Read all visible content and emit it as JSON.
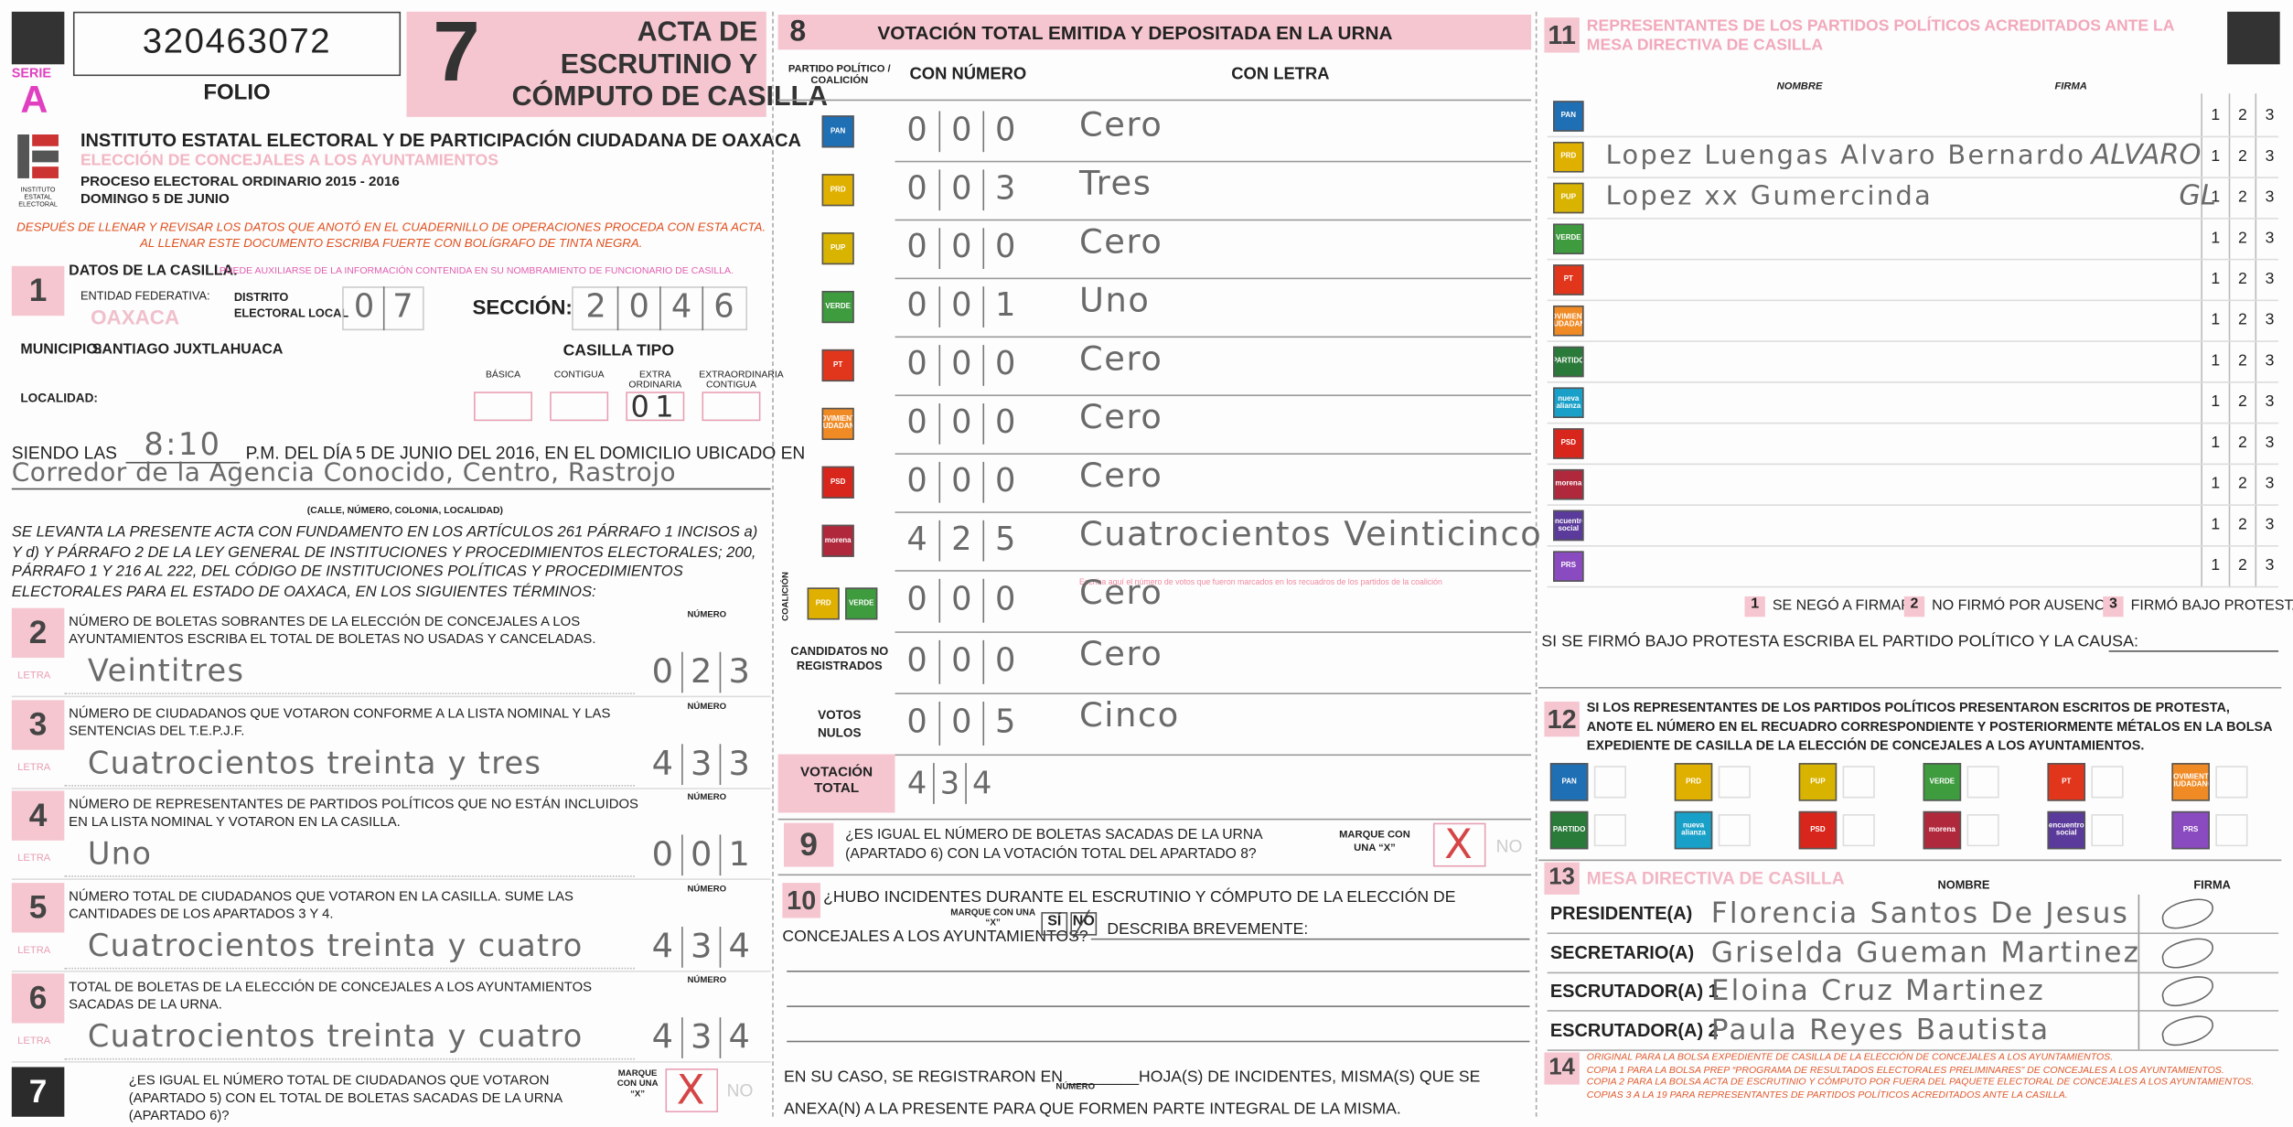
{
  "header": {
    "serie_label": "SERIE",
    "serie": "A",
    "folio_number": "320463072",
    "folio_label": "FOLIO",
    "form_number": "7",
    "title_lines": [
      "ACTA DE",
      "ESCRUTINIO Y",
      "CÓMPUTO DE CASILLA"
    ],
    "logo_caption": "INSTITUTO ESTATAL ELECTORAL",
    "institute": "INSTITUTO ESTATAL ELECTORAL Y DE PARTICIPACIÓN CIUDADANA DE OAXACA",
    "election": "ELECCIÓN DE CONCEJALES A LOS AYUNTAMIENTOS",
    "process": "PROCESO ELECTORAL ORDINARIO 2015 - 2016",
    "date": "DOMINGO 5 DE JUNIO",
    "instructions": [
      "DESPUÉS DE LLENAR Y REVISAR LOS DATOS QUE ANOTÓ EN EL CUADERNILLO DE OPERACIONES PROCEDA CON ESTA ACTA.",
      "AL LLENAR ESTE DOCUMENTO ESCRIBA FUERTE CON BOLÍGRAFO DE TINTA NEGRA."
    ]
  },
  "section1": {
    "number": "1",
    "title": "DATOS DE LA CASILLA.",
    "hint": "PUEDE AUXILIARSE DE LA INFORMACIÓN CONTENIDA EN SU NOMBRAMIENTO DE FUNCIONARIO DE CASILLA.",
    "entity_label": "ENTIDAD FEDERATIVA:",
    "entity": "OAXACA",
    "district_label": [
      "DISTRITO",
      "ELECTORAL LOCAL"
    ],
    "district_digits": [
      "0",
      "7"
    ],
    "section_label": "SECCIÓN:",
    "section_digits": [
      "2",
      "0",
      "4",
      "6"
    ],
    "municipality_label": "MUNICIPIO:",
    "municipality": "SANTIAGO JUXTLAHUACA",
    "locality_label": "LOCALIDAD:",
    "type_label": "CASILLA TIPO",
    "types": [
      {
        "label": "BÁSICA"
      },
      {
        "label": "CONTIGUA"
      },
      {
        "label": "EXTRA ORDINARIA",
        "value": "01"
      },
      {
        "label": "EXTRAORDINARIA CONTIGUA"
      }
    ]
  },
  "opening": {
    "prefix": "SIENDO LAS",
    "time": "8:10",
    "text": "P.M. DEL DÍA 5 DE JUNIO DEL 2016, EN EL DOMICILIO UBICADO EN",
    "address": "Corredor de la Agencia Conocido, Centro, Rastrojo",
    "address_hint": "(CALLE, NÚMERO, COLONIA, LOCALIDAD)",
    "legal": "SE LEVANTA LA PRESENTE ACTA CON FUNDAMENTO EN LOS ARTÍCULOS 261 PÁRRAFO 1 INCISOS a) Y d) Y PÁRRAFO 2 DE LA LEY GENERAL DE INSTITUCIONES Y PROCEDIMIENTOS ELECTORALES; 200, PÁRRAFO 1 Y 216 AL 222, DEL CÓDIGO DE INSTITUCIONES POLÍTICAS Y PROCEDIMIENTOS ELECTORALES PARA EL ESTADO DE OAXACA, EN LOS SIGUIENTES TÉRMINOS:"
  },
  "counts": {
    "number_label": "NÚMERO",
    "letter_label": "LETRA",
    "items": [
      {
        "number": "2",
        "question": "NÚMERO DE BOLETAS SOBRANTES DE LA ELECCIÓN DE CONCEJALES A LOS AYUNTAMIENTOS ESCRIBA EL TOTAL DE BOLETAS NO USADAS Y CANCELADAS.",
        "letter": "Veintitres",
        "digits": [
          "0",
          "2",
          "3"
        ]
      },
      {
        "number": "3",
        "question": "NÚMERO DE CIUDADANOS QUE VOTARON CONFORME A LA LISTA NOMINAL Y LAS SENTENCIAS DEL T.E.P.J.F.",
        "letter": "Cuatrocientos treinta y tres",
        "digits": [
          "4",
          "3",
          "3"
        ]
      },
      {
        "number": "4",
        "question": "NÚMERO DE REPRESENTANTES DE PARTIDOS POLÍTICOS QUE NO ESTÁN INCLUIDOS EN LA LISTA NOMINAL Y VOTARON EN LA CASILLA.",
        "letter": "Uno",
        "digits": [
          "0",
          "0",
          "1"
        ]
      },
      {
        "number": "5",
        "question": "NÚMERO TOTAL DE CIUDADANOS QUE VOTARON EN LA CASILLA. SUME LAS CANTIDADES DE LOS APARTADOS 3 Y 4.",
        "letter": "Cuatrocientos treinta y cuatro",
        "digits": [
          "4",
          "3",
          "4"
        ]
      },
      {
        "number": "6",
        "question": "TOTAL DE BOLETAS DE LA ELECCIÓN DE CONCEJALES A LOS AYUNTAMIENTOS SACADAS DE LA URNA.",
        "letter": "Cuatrocientos treinta y cuatro",
        "digits": [
          "4",
          "3",
          "4"
        ]
      }
    ]
  },
  "section7": {
    "number": "7",
    "question": "¿ES IGUAL EL NÚMERO TOTAL DE CIUDADANOS QUE VOTARON (APARTADO 5) CON EL TOTAL DE BOLETAS SACADAS DE LA URNA (APARTADO 6)?",
    "mark_label": "MARQUE CON UNA “X”",
    "mark": "X",
    "no": "NO"
  },
  "section8": {
    "number": "8",
    "title": "VOTACIÓN TOTAL EMITIDA Y DEPOSITADA EN LA URNA",
    "party_col_label": "PARTIDO POLÍTICO / COALICIÓN",
    "number_col_label": "CON NÚMERO",
    "letter_col_label": "CON LETRA",
    "parties": [
      {
        "logo": {
          "label": "PAN",
          "color": "#1f6fb5"
        },
        "digits": [
          "0",
          "0",
          "0"
        ],
        "letter": "Cero"
      },
      {
        "logo": {
          "label": "PRD",
          "color": "#e0b000"
        },
        "digits": [
          "0",
          "0",
          "3"
        ],
        "letter": "Tres"
      },
      {
        "logo": {
          "label": "PUP",
          "color": "#d8b400"
        },
        "digits": [
          "0",
          "0",
          "0"
        ],
        "letter": "Cero"
      },
      {
        "logo": {
          "label": "VERDE",
          "color": "#3e9b3e"
        },
        "digits": [
          "0",
          "0",
          "1"
        ],
        "letter": "Uno"
      },
      {
        "logo": {
          "label": "PT",
          "color": "#e2361c"
        },
        "digits": [
          "0",
          "0",
          "0"
        ],
        "letter": "Cero"
      },
      {
        "logo": {
          "label": "MOVIMIENTO CIUDADANO",
          "color": "#f08a24"
        },
        "digits": [
          "0",
          "0",
          "0"
        ],
        "letter": "Cero"
      },
      {
        "logo": {
          "label": "PSD",
          "color": "#d9261c"
        },
        "digits": [
          "0",
          "0",
          "0"
        ],
        "letter": "Cero"
      },
      {
        "logo": {
          "label": "morena",
          "color": "#b0283c"
        },
        "digits": [
          "4",
          "2",
          "5"
        ],
        "letter": "Cuatrocientos Veinticinco"
      }
    ],
    "note": "Escriba aquí el número de votos que fueron marcados en los recuadros de los partidos de la coalición",
    "coalition": {
      "label": "COALICIÓN",
      "logos": [
        {
          "label": "PRD",
          "color": "#e0b000"
        },
        {
          "label": "VERDE",
          "color": "#3e9b3e"
        }
      ],
      "digits": [
        "0",
        "0",
        "0"
      ],
      "letter": "Cero"
    },
    "unregistered": {
      "label": "CANDIDATOS NO REGISTRADOS",
      "digits": [
        "0",
        "0",
        "0"
      ],
      "letter": "Cero"
    },
    "null_votes": {
      "label": "VOTOS NULOS",
      "digits": [
        "0",
        "0",
        "5"
      ],
      "letter": "Cinco"
    },
    "total": {
      "label": "VOTACIÓN TOTAL",
      "digits": [
        "4",
        "3",
        "4"
      ]
    }
  },
  "section9": {
    "number": "9",
    "question": "¿ES IGUAL EL NÚMERO DE BOLETAS SACADAS DE LA URNA (APARTADO 6) CON LA VOTACIÓN TOTAL DEL APARTADO 8?",
    "mark_label": "MARQUE CON UNA “X”",
    "mark": "X",
    "no": "NO"
  },
  "section10": {
    "number": "10",
    "question": "¿HUBO INCIDENTES DURANTE EL ESCRUTINIO Y CÓMPUTO DE LA ELECCIÓN DE CONCEJALES A LOS AYUNTAMIENTOS?",
    "mark_label": "MARQUE CON UNA “X”",
    "yes": "SÍ",
    "no": "NO",
    "describe": "DESCRIBA BREVEMENTE:",
    "footer": "EN SU CASO, SE REGISTRARON EN ________HOJA(S) DE INCIDENTES, MISMA(S) QUE SE ANEXA(N) A LA PRESENTE PARA QUE FORMEN PARTE INTEGRAL DE LA MISMA.",
    "footer_hint": "NÚMERO"
  },
  "section11": {
    "number": "11",
    "title": "REPRESENTANTES DE LOS PARTIDOS POLÍTICOS ACREDITADOS ANTE LA MESA DIRECTIVA DE CASILLA",
    "name_label": "NOMBRE",
    "signature_label": "FIRMA",
    "options": [
      "1",
      "2",
      "3"
    ],
    "rows": [
      {
        "logo": {
          "label": "PAN",
          "color": "#1f6fb5"
        }
      },
      {
        "logo": {
          "label": "PRD",
          "color": "#e0b000"
        },
        "name": "Lopez Luengas Alvaro Bernardo",
        "signature": "ALVARO"
      },
      {
        "logo": {
          "label": "PUP",
          "color": "#d8b400"
        },
        "name": "Lopez xx Gumercinda",
        "signature": "GL"
      },
      {
        "logo": {
          "label": "VERDE",
          "color": "#3e9b3e"
        }
      },
      {
        "logo": {
          "label": "PT",
          "color": "#e2361c"
        }
      },
      {
        "logo": {
          "label": "MOVIMIENTO CIUDADANO",
          "color": "#f08a24"
        }
      },
      {
        "logo": {
          "label": "PARTIDO",
          "color": "#2a7a3a"
        }
      },
      {
        "logo": {
          "label": "nueva alianza",
          "color": "#19a0c8"
        }
      },
      {
        "logo": {
          "label": "PSD",
          "color": "#d9261c"
        }
      },
      {
        "logo": {
          "label": "morena",
          "color": "#b0283c"
        }
      },
      {
        "logo": {
          "label": "encuentro social",
          "color": "#5a3a9a"
        }
      },
      {
        "logo": {
          "label": "PRS",
          "color": "#8a4ac0"
        }
      }
    ],
    "legend": [
      {
        "number": "1",
        "text": "SE NEGÓ A FIRMAR"
      },
      {
        "number": "2",
        "text": "NO FIRMÓ POR AUSENCIA"
      },
      {
        "number": "3",
        "text": "FIRMÓ BAJO PROTESTA"
      }
    ],
    "protest_question": "SI SE FIRMÓ BAJO PROTESTA ESCRIBA EL PARTIDO POLÍTICO Y LA CAUSA:"
  },
  "section12": {
    "number": "12",
    "text": "SI LOS REPRESENTANTES DE LOS PARTIDOS POLÍTICOS PRESENTARON ESCRITOS DE PROTESTA, ANOTE EL NÚMERO EN EL RECUADRO CORRESPONDIENTE Y POSTERIORMENTE MÉTALOS EN LA BOLSA EXPEDIENTE DE CASILLA DE LA ELECCIÓN DE CONCEJALES A LOS AYUNTAMIENTOS.",
    "logos": [
      {
        "label": "PAN",
        "color": "#1f6fb5"
      },
      {
        "label": "PRD",
        "color": "#e0b000"
      },
      {
        "label": "PUP",
        "color": "#d8b400"
      },
      {
        "label": "VERDE",
        "color": "#3e9b3e"
      },
      {
        "label": "PT",
        "color": "#e2361c"
      },
      {
        "label": "MOVIMIENTO CIUDADANO",
        "color": "#f08a24"
      },
      {
        "label": "PARTIDO",
        "color": "#2a7a3a"
      },
      {
        "label": "nueva alianza",
        "color": "#19a0c8"
      },
      {
        "label": "PSD",
        "color": "#d9261c"
      },
      {
        "label": "morena",
        "color": "#b0283c"
      },
      {
        "label": "encuentro social",
        "color": "#5a3a9a"
      },
      {
        "label": "PRS",
        "color": "#8a4ac0"
      }
    ]
  },
  "section13": {
    "number": "13",
    "title": "MESA DIRECTIVA DE CASILLA",
    "name_label": "NOMBRE",
    "signature_label": "FIRMA",
    "members": [
      {
        "role": "PRESIDENTE(A)",
        "name": "Florencia Santos De Jesus"
      },
      {
        "role": "SECRETARIO(A)",
        "name": "Griselda Gueman Martinez"
      },
      {
        "role": "ESCRUTADOR(A) 1",
        "name": "Eloina Cruz Martinez"
      },
      {
        "role": "ESCRUTADOR(A) 2",
        "name": "Paula Reyes Bautista"
      }
    ]
  },
  "section14": {
    "number": "14",
    "lines": [
      "ORIGINAL PARA LA BOLSA EXPEDIENTE DE CASILLA DE LA ELECCIÓN DE CONCEJALES A LOS AYUNTAMIENTOS.",
      "COPIA 1 PARA LA BOLSA PREP “PROGRAMA DE RESULTADOS ELECTORALES PRELIMINARES” DE CONCEJALES A LOS AYUNTAMIENTOS.",
      "COPIA 2 PARA LA BOLSA ACTA DE ESCRUTINIO Y CÓMPUTO POR FUERA DEL PAQUETE ELECTORAL DE CONCEJALES A LOS AYUNTAMIENTOS.",
      "COPIAS 3 A LA 19 PARA REPRESENTANTES DE PARTIDOS POLÍTICOS ACREDITADOS ANTE LA CASILLA."
    ]
  }
}
